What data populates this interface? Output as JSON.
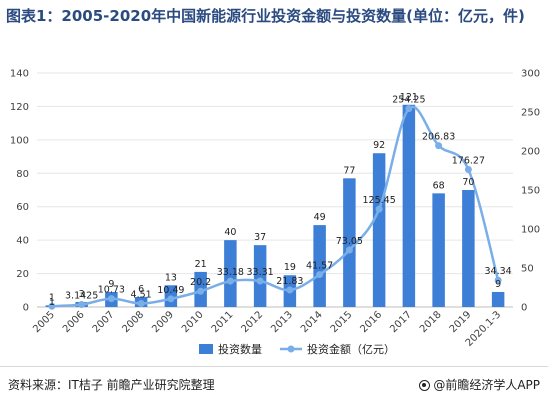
{
  "title": "图表1：2005-2020年中国新能源行业投资金额与投资数量(单位：亿元，件)",
  "source": "资料来源：IT桔子 前瞻产业研究院整理",
  "brand": "@前瞻经济学人APP",
  "colors": {
    "bar": "#3d7fd6",
    "line": "#7aaee8",
    "text": "#404040",
    "grid": "#e6e6e6",
    "title": "#2a4a80"
  },
  "chart_data": {
    "type": "bar",
    "categories": [
      "2005",
      "2006",
      "2007",
      "2008",
      "2009",
      "2010",
      "2011",
      "2012",
      "2013",
      "2014",
      "2015",
      "2016",
      "2017",
      "2018",
      "2019",
      "2020.1-3"
    ],
    "series": [
      {
        "name": "投资数量",
        "type": "bar",
        "axis": "left",
        "values": [
          1,
          3,
          9,
          6,
          13,
          21,
          40,
          37,
          19,
          49,
          77,
          92,
          121,
          68,
          70,
          9
        ],
        "labels": [
          "1",
          "3",
          "9",
          "6",
          "13",
          "21",
          "40",
          "37",
          "19",
          "49",
          "77",
          "92",
          "121",
          "68",
          "70",
          "9"
        ]
      },
      {
        "name": "投资金额（亿元）",
        "type": "line",
        "axis": "right",
        "values": [
          1,
          3.1425,
          10.73,
          4.51,
          10.49,
          20.2,
          33.18,
          33.31,
          21.83,
          41.57,
          73.05,
          125.45,
          254.25,
          206.83,
          176.27,
          34.34
        ],
        "labels": [
          "1",
          "3.1425",
          "10.73",
          "4.51",
          "10.49",
          "20.2",
          "33.18",
          "33.31",
          "21.83",
          "41.57",
          "73.05",
          "125.45",
          "254.25",
          "206.83",
          "176.27",
          "34.34"
        ]
      }
    ],
    "y_left": {
      "min": 0,
      "max": 140,
      "ticks": [
        "0",
        "20",
        "40",
        "60",
        "80",
        "100",
        "120",
        "140"
      ]
    },
    "y_right": {
      "min": 0,
      "max": 300,
      "ticks": [
        "0",
        "50",
        "100",
        "150",
        "200",
        "250",
        "300"
      ]
    },
    "legend": {
      "position": "bottom",
      "bar_label": "投资数量",
      "line_label": "投资金额（亿元）"
    },
    "grid": true
  }
}
